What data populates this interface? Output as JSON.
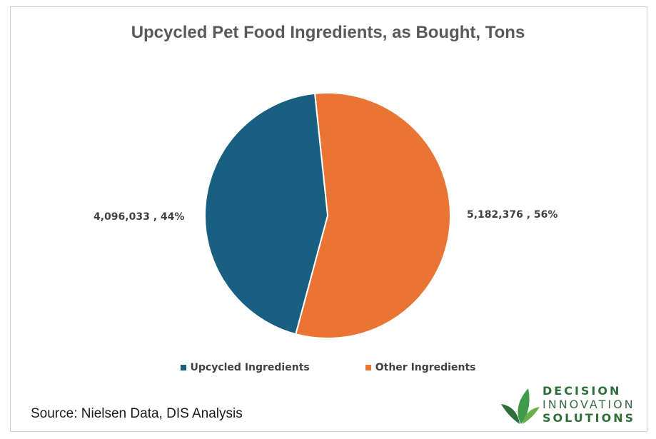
{
  "chart_data": {
    "type": "pie",
    "title": "Upcycled Pet Food Ingredients, as Bought, Tons",
    "categories": [
      "Upcycled Ingredients",
      "Other Ingredients"
    ],
    "values": [
      4096033,
      5182376
    ],
    "percents": [
      44,
      56
    ],
    "data_labels": [
      "4,096,033 , 44%",
      "5,182,376 , 56%"
    ],
    "colors": [
      "#185f82",
      "#ea7434"
    ],
    "legend_position": "bottom"
  },
  "source_text": "Source: Nielsen Data, DIS Analysis",
  "logo": {
    "line1": "DECISION",
    "line2": "INNOVATION",
    "line3": "SOLUTIONS"
  }
}
